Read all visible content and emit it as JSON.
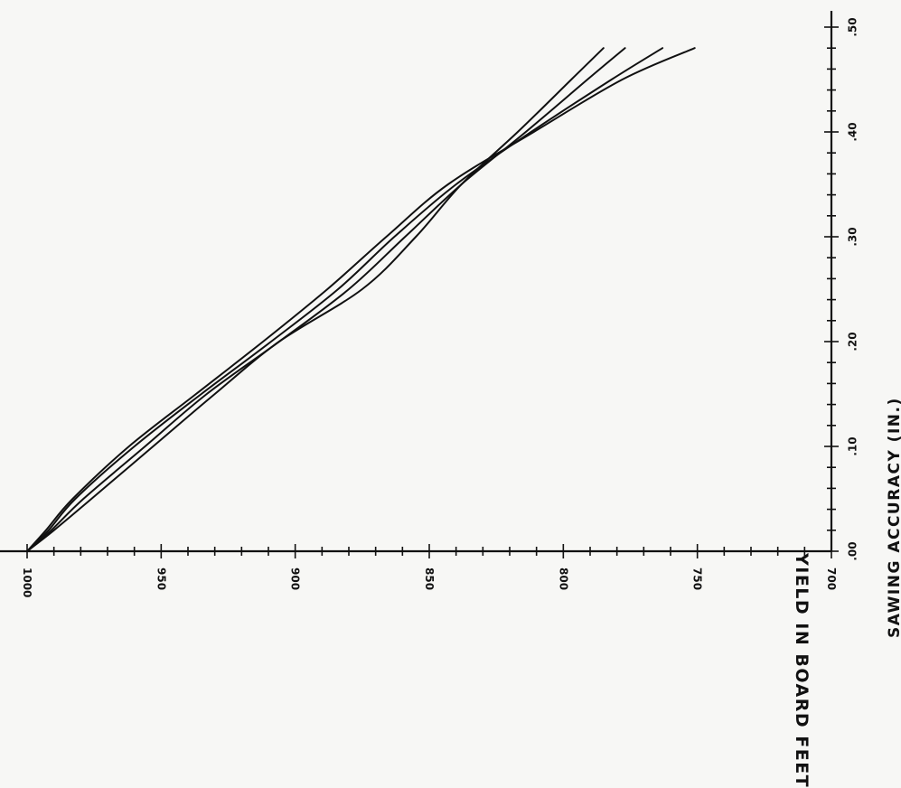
{
  "chart_data": {
    "type": "line",
    "xlabel": "SAWING ACCURACY (IN.)",
    "ylabel": "YIELD IN BOARD FEET",
    "x_ticks": [
      ".00",
      ".10",
      ".20",
      ".30",
      ".40",
      ".50"
    ],
    "y_ticks": [
      "1000",
      "950",
      "900",
      "850",
      "800",
      "750",
      "700"
    ],
    "xlim": [
      0.0,
      0.5
    ],
    "ylim": [
      700,
      1000
    ],
    "grid": false,
    "x": [
      0.0,
      0.02,
      0.05,
      0.1,
      0.15,
      0.2,
      0.25,
      0.3,
      0.35,
      0.4,
      0.45,
      0.48
    ],
    "series": [
      {
        "values": [
          1000,
          990,
          976,
          953,
          930,
          906,
          875,
          855,
          838,
          817,
          797,
          785
        ]
      },
      {
        "values": [
          1000,
          991,
          979,
          956,
          933,
          906,
          880,
          859,
          838,
          814,
          791,
          777
        ]
      },
      {
        "values": [
          1000,
          992,
          982,
          960,
          935,
          909,
          884,
          863,
          840,
          812,
          782,
          763
        ]
      },
      {
        "values": [
          1000,
          993,
          983,
          962,
          937,
          912,
          888,
          866,
          843,
          811,
          778,
          751
        ]
      }
    ],
    "line_color": "#111111"
  }
}
